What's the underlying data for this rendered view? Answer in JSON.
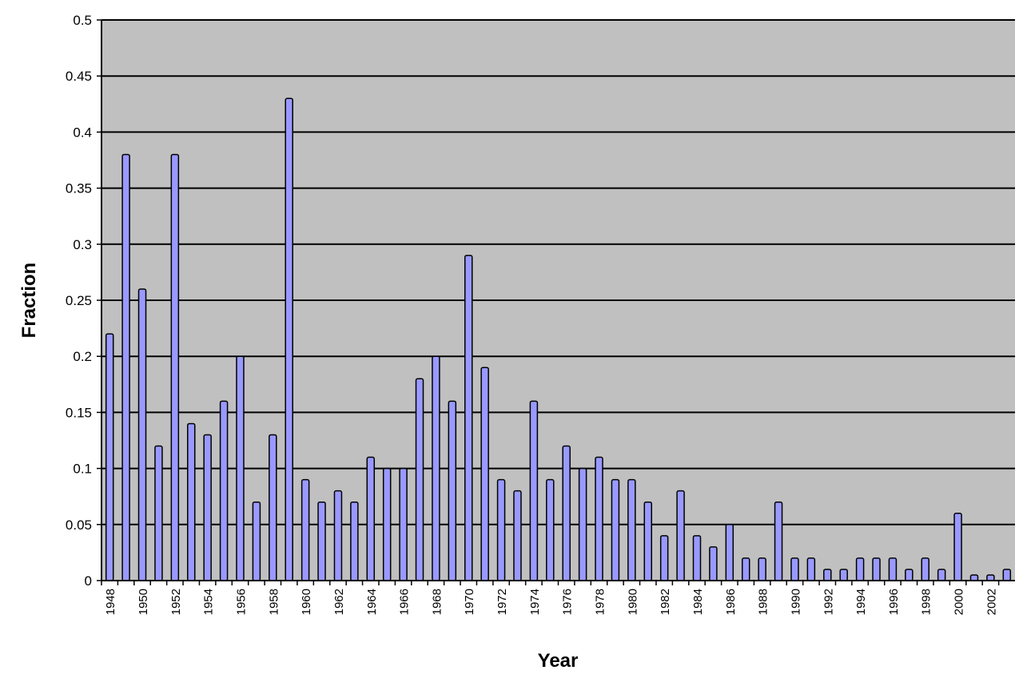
{
  "chart_data": {
    "type": "bar",
    "title": "",
    "xlabel": "Year",
    "ylabel": "Fraction",
    "ylim": [
      0,
      0.5
    ],
    "yticks": [
      "0",
      "0.05",
      "0.1",
      "0.15",
      "0.2",
      "0.25",
      "0.3",
      "0.35",
      "0.4",
      "0.45",
      "0.5"
    ],
    "grid": true,
    "legend": "none",
    "colors": {
      "bar": "#9999ff",
      "bar_outline": "#000000",
      "plot_background": "#c0c0c0",
      "gridline": "#000000"
    },
    "categories": [
      "1948",
      "1949",
      "1950",
      "1951",
      "1952",
      "1953",
      "1954",
      "1955",
      "1956",
      "1957",
      "1958",
      "1959",
      "1960",
      "1961",
      "1962",
      "1963",
      "1964",
      "1965",
      "1966",
      "1967",
      "1968",
      "1969",
      "1970",
      "1971",
      "1972",
      "1973",
      "1974",
      "1975",
      "1976",
      "1977",
      "1978",
      "1979",
      "1980",
      "1981",
      "1982",
      "1983",
      "1984",
      "1985",
      "1986",
      "1987",
      "1988",
      "1989",
      "1990",
      "1991",
      "1992",
      "1993",
      "1994",
      "1995",
      "1996",
      "1997",
      "1998",
      "1999",
      "2000",
      "2001",
      "2002",
      "2003"
    ],
    "xtick_labels": [
      "1948",
      "1950",
      "1952",
      "1954",
      "1956",
      "1958",
      "1960",
      "1962",
      "1964",
      "1966",
      "1968",
      "1970",
      "1972",
      "1974",
      "1976",
      "1978",
      "1980",
      "1982",
      "1984",
      "1986",
      "1988",
      "1990",
      "1992",
      "1994",
      "1996",
      "1998",
      "2000",
      "2002"
    ],
    "values": [
      0.22,
      0.38,
      0.26,
      0.12,
      0.38,
      0.14,
      0.13,
      0.16,
      0.2,
      0.07,
      0.13,
      0.43,
      0.09,
      0.07,
      0.08,
      0.07,
      0.11,
      0.1,
      0.1,
      0.18,
      0.2,
      0.16,
      0.29,
      0.19,
      0.09,
      0.08,
      0.16,
      0.09,
      0.12,
      0.1,
      0.11,
      0.09,
      0.09,
      0.07,
      0.04,
      0.08,
      0.04,
      0.03,
      0.05,
      0.02,
      0.02,
      0.07,
      0.02,
      0.02,
      0.01,
      0.01,
      0.02,
      0.02,
      0.02,
      0.01,
      0.02,
      0.01,
      0.06,
      0.005,
      0.005,
      0.01
    ]
  }
}
